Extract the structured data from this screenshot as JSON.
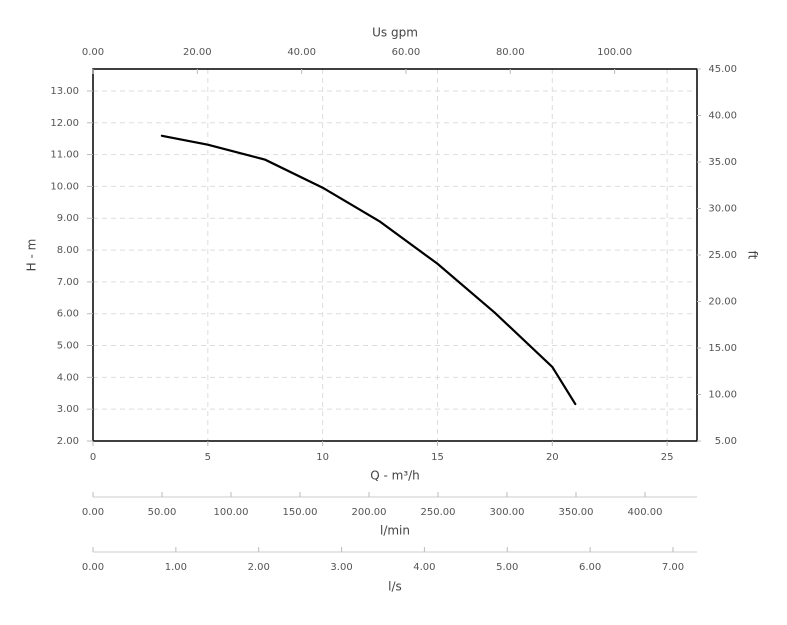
{
  "chart_data": {
    "type": "line",
    "xlabel": "Q - m³/h",
    "ylabel": "H - m",
    "y2label": "ft",
    "x": [
      3,
      5,
      7.5,
      10,
      12.5,
      15,
      17.5,
      20,
      21
    ],
    "series": [
      {
        "color": "#000000",
        "values": [
          11.59,
          11.31,
          10.84,
          9.96,
          8.89,
          7.57,
          6.03,
          4.33,
          3.16
        ]
      }
    ],
    "xlim": [
      0,
      26.3
    ],
    "xticks": [
      0,
      5,
      10,
      15,
      20,
      25
    ],
    "ylim": [
      2,
      13.69
    ],
    "yticks": [
      {
        "value": 2,
        "label": "2.00"
      },
      {
        "value": 3,
        "label": "3.00"
      },
      {
        "value": 4,
        "label": "4.00"
      },
      {
        "value": 5,
        "label": "5.00"
      },
      {
        "value": 6,
        "label": "6.00"
      },
      {
        "value": 7,
        "label": "7.00"
      },
      {
        "value": 8,
        "label": "8.00"
      },
      {
        "value": 9,
        "label": "9.00"
      },
      {
        "value": 10,
        "label": "10.00"
      },
      {
        "value": 11,
        "label": "11.00"
      },
      {
        "value": 12,
        "label": "12.00"
      },
      {
        "value": 13,
        "label": "13.00"
      }
    ],
    "y2lim": [
      5,
      45
    ],
    "y2ticks": [
      {
        "value": 5,
        "label": "5.00"
      },
      {
        "value": 10,
        "label": "10.00"
      },
      {
        "value": 15,
        "label": "15.00"
      },
      {
        "value": 20,
        "label": "20.00"
      },
      {
        "value": 25,
        "label": "25.00"
      },
      {
        "value": 30,
        "label": "30.00"
      },
      {
        "value": 35,
        "label": "35.00"
      },
      {
        "value": 40,
        "label": "40.00"
      },
      {
        "value": 45,
        "label": "45.00"
      }
    ],
    "grid": true,
    "secondary_x_axes": [
      {
        "label": "Us gpm",
        "xlim": [
          0,
          115.8
        ],
        "xticks": [
          {
            "value": 0,
            "label": "0.00"
          },
          {
            "value": 20,
            "label": "20.00"
          },
          {
            "value": 40,
            "label": "40.00"
          },
          {
            "value": 60,
            "label": "60.00"
          },
          {
            "value": 80,
            "label": "80.00"
          },
          {
            "value": 100,
            "label": "100.00"
          }
        ]
      },
      {
        "label": "l/min",
        "xlim": [
          0,
          437.7
        ],
        "xticks": [
          {
            "value": 0,
            "label": "0.00"
          },
          {
            "value": 50,
            "label": "50.00"
          },
          {
            "value": 100,
            "label": "100.00"
          },
          {
            "value": 150,
            "label": "150.00"
          },
          {
            "value": 200,
            "label": "200.00"
          },
          {
            "value": 250,
            "label": "250.00"
          },
          {
            "value": 300,
            "label": "300.00"
          },
          {
            "value": 350,
            "label": "350.00"
          },
          {
            "value": 400,
            "label": "400.00"
          }
        ]
      },
      {
        "label": "l/s",
        "xlim": [
          0,
          7.29
        ],
        "xticks": [
          {
            "value": 0,
            "label": "0.00"
          },
          {
            "value": 1,
            "label": "1.00"
          },
          {
            "value": 2,
            "label": "2.00"
          },
          {
            "value": 3,
            "label": "3.00"
          },
          {
            "value": 4,
            "label": "4.00"
          },
          {
            "value": 5,
            "label": "5.00"
          },
          {
            "value": 6,
            "label": "6.00"
          },
          {
            "value": 7,
            "label": "7.00"
          }
        ]
      }
    ]
  }
}
